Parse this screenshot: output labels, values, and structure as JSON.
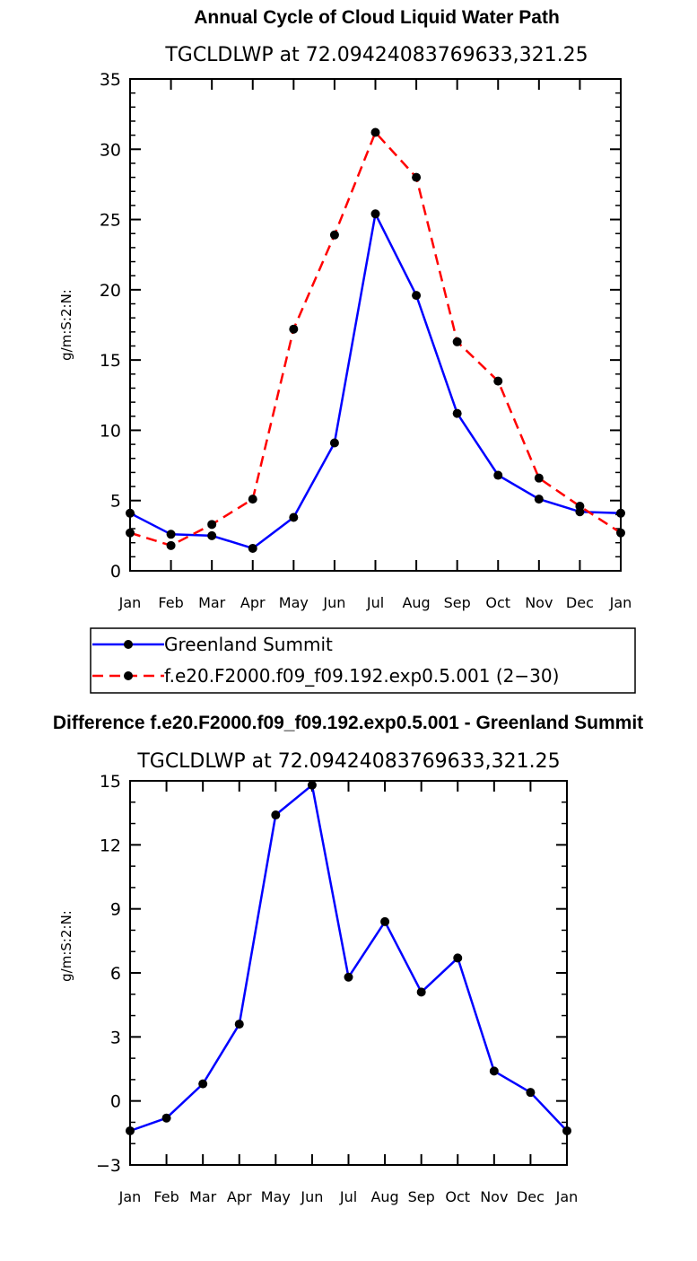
{
  "chart_data": [
    {
      "type": "line",
      "title": "Annual Cycle of Cloud Liquid Water Path",
      "subtitle": "TGCLDLWP  at 72.09424083769633,321.25",
      "xlabel": "",
      "ylabel": "g/m:S:2:N:",
      "categories": [
        "Jan",
        "Feb",
        "Mar",
        "Apr",
        "May",
        "Jun",
        "Jul",
        "Aug",
        "Sep",
        "Oct",
        "Nov",
        "Dec",
        "Jan"
      ],
      "ylim": [
        0,
        35
      ],
      "yticks": [
        0,
        5,
        10,
        15,
        20,
        25,
        30,
        35
      ],
      "series": [
        {
          "name": "Greenland Summit",
          "color": "#0000ff",
          "dash": "solid",
          "values": [
            4.1,
            2.6,
            2.5,
            1.6,
            3.8,
            9.1,
            25.4,
            19.6,
            11.2,
            6.8,
            5.1,
            4.2,
            4.1
          ]
        },
        {
          "name": "f.e20.F2000.f09_f09.192.exp0.5.001 (2−30)",
          "color": "#ff0000",
          "dash": "dashed",
          "values": [
            2.7,
            1.8,
            3.3,
            5.1,
            17.2,
            23.9,
            31.2,
            28.0,
            16.3,
            13.5,
            6.6,
            4.6,
            2.7
          ]
        }
      ]
    },
    {
      "type": "line",
      "title": "Difference f.e20.F2000.f09_f09.192.exp0.5.001 - Greenland Summit",
      "subtitle": "TGCLDLWP  at 72.09424083769633,321.25",
      "xlabel": "",
      "ylabel": "g/m:S:2:N:",
      "categories": [
        "Jan",
        "Feb",
        "Mar",
        "Apr",
        "May",
        "Jun",
        "Jul",
        "Aug",
        "Sep",
        "Oct",
        "Nov",
        "Dec",
        "Jan"
      ],
      "ylim": [
        -3,
        15
      ],
      "yticks": [
        -3,
        0,
        3,
        6,
        9,
        12,
        15
      ],
      "series": [
        {
          "name": "Difference",
          "color": "#0000ff",
          "dash": "solid",
          "values": [
            -1.4,
            -0.8,
            0.8,
            3.6,
            13.4,
            14.8,
            5.8,
            8.4,
            5.1,
            6.7,
            1.4,
            0.4,
            -1.4
          ]
        }
      ]
    }
  ]
}
